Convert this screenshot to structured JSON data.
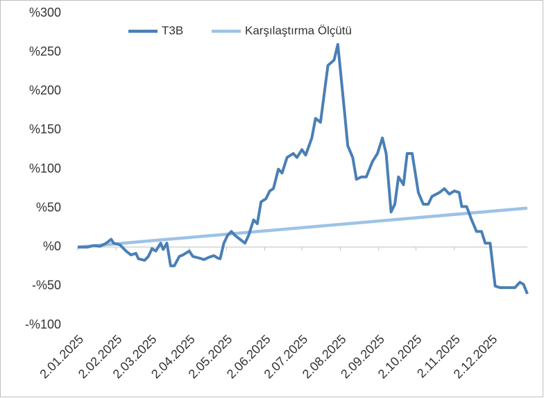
{
  "chart_data": {
    "type": "line",
    "series": [
      {
        "name": "T3B",
        "color": "#4a7fb5",
        "x": [
          "2025-01-02",
          "2025-01-10",
          "2025-01-15",
          "2025-01-20",
          "2025-01-25",
          "2025-01-29",
          "2025-01-31",
          "2025-02-05",
          "2025-02-10",
          "2025-02-14",
          "2025-02-18",
          "2025-02-20",
          "2025-02-25",
          "2025-02-28",
          "2025-03-03",
          "2025-03-06",
          "2025-03-10",
          "2025-03-12",
          "2025-03-15",
          "2025-03-18",
          "2025-03-21",
          "2025-03-25",
          "2025-03-28",
          "2025-04-02",
          "2025-04-05",
          "2025-04-10",
          "2025-04-14",
          "2025-04-18",
          "2025-04-22",
          "2025-04-25",
          "2025-04-27",
          "2025-04-30",
          "2025-05-03",
          "2025-05-06",
          "2025-05-09",
          "2025-05-13",
          "2025-05-17",
          "2025-05-20",
          "2025-05-24",
          "2025-05-27",
          "2025-05-30",
          "2025-06-03",
          "2025-06-06",
          "2025-06-09",
          "2025-06-13",
          "2025-06-16",
          "2025-06-20",
          "2025-06-25",
          "2025-06-28",
          "2025-07-02",
          "2025-07-05",
          "2025-07-10",
          "2025-07-13",
          "2025-07-17",
          "2025-07-23",
          "2025-07-28",
          "2025-07-31",
          "2025-08-05",
          "2025-08-08",
          "2025-08-12",
          "2025-08-15",
          "2025-08-19",
          "2025-08-23",
          "2025-08-28",
          "2025-09-01",
          "2025-09-05",
          "2025-09-08",
          "2025-09-12",
          "2025-09-15",
          "2025-09-18",
          "2025-09-22",
          "2025-09-25",
          "2025-09-29",
          "2025-10-01",
          "2025-10-04",
          "2025-10-08",
          "2025-10-12",
          "2025-10-15",
          "2025-10-21",
          "2025-10-25",
          "2025-10-29",
          "2025-11-02",
          "2025-11-06",
          "2025-11-08",
          "2025-11-12",
          "2025-11-16",
          "2025-11-20",
          "2025-11-24",
          "2025-11-27",
          "2025-12-01",
          "2025-12-05",
          "2025-12-09",
          "2025-12-15",
          "2025-12-21",
          "2025-12-25",
          "2025-12-28",
          "2025-12-31"
        ],
        "values": [
          0,
          0,
          2,
          1,
          5,
          10,
          5,
          3,
          -5,
          -10,
          -8,
          -15,
          -17,
          -12,
          -2,
          -5,
          5,
          -3,
          5,
          -24,
          -24,
          -12,
          -10,
          -5,
          -12,
          -14,
          -16,
          -13,
          -11,
          -14,
          -15,
          5,
          15,
          20,
          15,
          10,
          5,
          15,
          35,
          30,
          58,
          62,
          72,
          75,
          100,
          95,
          115,
          120,
          115,
          125,
          118,
          140,
          165,
          160,
          233,
          240,
          260,
          180,
          130,
          115,
          87,
          90,
          90,
          110,
          120,
          140,
          120,
          45,
          55,
          90,
          80,
          120,
          120,
          100,
          70,
          55,
          55,
          65,
          70,
          75,
          68,
          72,
          70,
          52,
          52,
          35,
          20,
          20,
          5,
          5,
          -50,
          -52,
          -52,
          -52,
          -45,
          -48,
          -60
        ]
      },
      {
        "name": "Karşılaştırma Ölçütü",
        "color": "#9dc3e6",
        "x": [
          "2025-01-02",
          "2025-12-31"
        ],
        "values": [
          0,
          50
        ]
      }
    ],
    "xlim": [
      "2025-01-02",
      "2025-12-31"
    ],
    "xticks": [
      {
        "value": "2025-01-02",
        "label": "2.01.2025"
      },
      {
        "value": "2025-02-02",
        "label": "2.02.2025"
      },
      {
        "value": "2025-03-02",
        "label": "2.03.2025"
      },
      {
        "value": "2025-04-02",
        "label": "2.04.2025"
      },
      {
        "value": "2025-05-02",
        "label": "2.05.2025"
      },
      {
        "value": "2025-06-02",
        "label": "2.06.2025"
      },
      {
        "value": "2025-07-02",
        "label": "2.07.2025"
      },
      {
        "value": "2025-08-02",
        "label": "2.08.2025"
      },
      {
        "value": "2025-09-02",
        "label": "2.09.2025"
      },
      {
        "value": "2025-10-02",
        "label": "2.10.2025"
      },
      {
        "value": "2025-11-02",
        "label": "2.11.2025"
      },
      {
        "value": "2025-12-02",
        "label": "2.12.2025"
      }
    ],
    "ylim": [
      -100,
      300
    ],
    "yticks": [
      {
        "value": -100,
        "label": "-%100"
      },
      {
        "value": -50,
        "label": "-%50"
      },
      {
        "value": 0,
        "label": "%0"
      },
      {
        "value": 50,
        "label": "%50"
      },
      {
        "value": 100,
        "label": "%100"
      },
      {
        "value": 150,
        "label": "%150"
      },
      {
        "value": 200,
        "label": "%200"
      },
      {
        "value": 250,
        "label": "%250"
      },
      {
        "value": 300,
        "label": "%300"
      }
    ],
    "legend": "top"
  }
}
